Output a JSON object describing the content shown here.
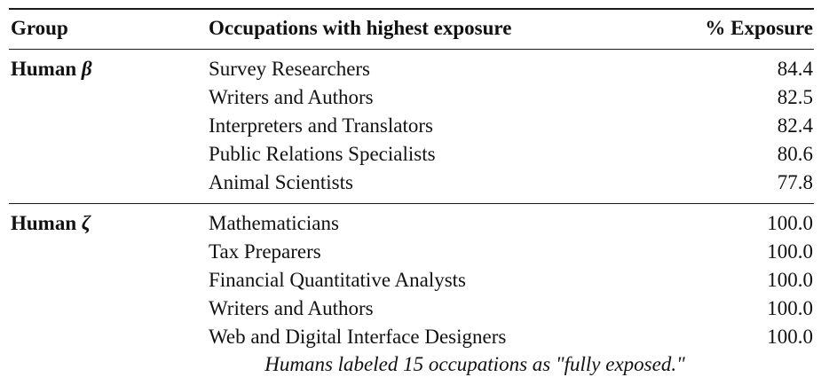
{
  "header": {
    "group": "Group",
    "occupations": "Occupations with highest exposure",
    "exposure": "% Exposure"
  },
  "groups": [
    {
      "name": "Human",
      "symbol": "β",
      "rows": [
        {
          "occupation": "Survey Researchers",
          "exposure": "84.4"
        },
        {
          "occupation": "Writers and Authors",
          "exposure": "82.5"
        },
        {
          "occupation": "Interpreters and Translators",
          "exposure": "82.4"
        },
        {
          "occupation": "Public Relations Specialists",
          "exposure": "80.6"
        },
        {
          "occupation": "Animal Scientists",
          "exposure": "77.8"
        }
      ]
    },
    {
      "name": "Human",
      "symbol": "ζ",
      "rows": [
        {
          "occupation": "Mathematicians",
          "exposure": "100.0"
        },
        {
          "occupation": "Tax Preparers",
          "exposure": "100.0"
        },
        {
          "occupation": "Financial Quantitative Analysts",
          "exposure": "100.0"
        },
        {
          "occupation": "Writers and Authors",
          "exposure": "100.0"
        },
        {
          "occupation": "Web and Digital Interface Designers",
          "exposure": "100.0"
        }
      ]
    }
  ],
  "note": "Humans labeled 15 occupations as \"fully exposed.\""
}
